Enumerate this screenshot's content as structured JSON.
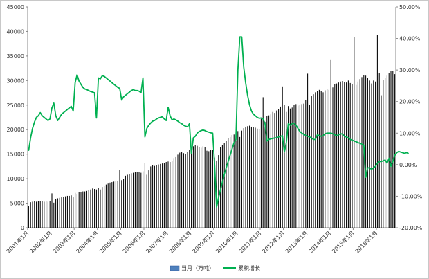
{
  "chart_data": {
    "type": "bar+line",
    "title": "",
    "x_tick_labels": [
      "2001年1月",
      "2002年1月",
      "2003年1月",
      "2004年1月",
      "2005年1月",
      "2006年1月",
      "2007年1月",
      "2008年1月",
      "2009年1月",
      "2010年1月",
      "2011年1月",
      "2012年1月",
      "2013年1月",
      "2014年1月",
      "2015年1月",
      "2016年1月"
    ],
    "y_left": {
      "min": 0,
      "max": 45000,
      "step": 5000,
      "tick_labels": [
        "0",
        "5000",
        "10000",
        "15000",
        "20000",
        "25000",
        "30000",
        "35000",
        "40000",
        "45000"
      ]
    },
    "y_right": {
      "min": -20,
      "max": 50,
      "step": 10,
      "tick_labels": [
        "-20.00%",
        "-10.00%",
        "0.00%",
        "10.00%",
        "20.00%",
        "30.00%",
        "40.00%",
        "50.00%"
      ]
    },
    "grid": false,
    "legend_position": "bottom",
    "colors": {
      "bar": "#000000",
      "bar_legend": "#4f81bd",
      "line": "#00b050"
    },
    "series": [
      {
        "name": "当月（万吨）",
        "axis": "left",
        "kind": "bar",
        "start": "2001-01",
        "values": [
          4400,
          5200,
          5300,
          5400,
          5300,
          5400,
          5400,
          5500,
          5300,
          5400,
          5300,
          5400,
          7000,
          5100,
          5800,
          6000,
          6100,
          6200,
          6300,
          6400,
          6500,
          6500,
          6600,
          6200,
          7100,
          6900,
          7200,
          7300,
          7400,
          7400,
          7500,
          7700,
          7800,
          8000,
          7900,
          7800,
          8100,
          7800,
          8300,
          8600,
          8800,
          9000,
          9200,
          9300,
          9400,
          9500,
          9600,
          11800,
          9700,
          9900,
          10600,
          10800,
          11000,
          11100,
          11200,
          11300,
          11400,
          11300,
          11200,
          11500,
          13200,
          10800,
          11700,
          12500,
          12700,
          12600,
          12800,
          12900,
          13000,
          13100,
          13200,
          13400,
          13500,
          13400,
          13600,
          14200,
          14400,
          14900,
          15300,
          15500,
          15200,
          15000,
          15400,
          15800,
          16300,
          16600,
          16800,
          16700,
          16500,
          16300,
          16600,
          16500,
          15700,
          15600,
          15800,
          15900,
          14300,
          13700,
          14800,
          16500,
          16900,
          17300,
          17700,
          18200,
          18500,
          18900,
          19000,
          19400,
          19700,
          18500,
          19800,
          20300,
          20600,
          20700,
          20800,
          20600,
          20500,
          20400,
          20200,
          20100,
          22200,
          26600,
          21600,
          22800,
          22900,
          23100,
          23600,
          23400,
          23900,
          24200,
          24700,
          28800,
          25000,
          23600,
          24800,
          24300,
          24500,
          25000,
          25200,
          24900,
          25100,
          25200,
          25300,
          26100,
          31400,
          25000,
          26800,
          27200,
          27600,
          27900,
          28100,
          27800,
          27600,
          28000,
          28300,
          28100,
          34300,
          28600,
          29200,
          29400,
          29600,
          29800,
          29900,
          29700,
          29600,
          30000,
          29500,
          29200,
          38900,
          29100,
          29800,
          30300,
          30700,
          31100,
          31000,
          30600,
          30000,
          29400,
          30000,
          29800,
          39300,
          31600,
          27000,
          30100,
          30600,
          31000,
          31500,
          32000,
          31900,
          31300
        ]
      },
      {
        "name": "累积增长",
        "axis": "right",
        "kind": "line",
        "start": "2001-01",
        "values": [
          4.5,
          8.5,
          11.5,
          13.5,
          15,
          15.5,
          16.5,
          15.5,
          15,
          14.5,
          14,
          14.5,
          18,
          19.5,
          15.5,
          14,
          15,
          16,
          16.5,
          17,
          17.5,
          18,
          18.5,
          17,
          26,
          28.5,
          26.5,
          25.5,
          24.5,
          24,
          23.8,
          23.5,
          23.2,
          23,
          22.8,
          14.8,
          27.5,
          27.2,
          28.2,
          28,
          27.5,
          27,
          26.5,
          26,
          25.5,
          25,
          24.5,
          24.2,
          20.5,
          21.5,
          22,
          22.5,
          23,
          23.5,
          23.8,
          23.5,
          23.5,
          23.3,
          22.8,
          27.5,
          8.8,
          11.5,
          12.5,
          13.2,
          13.8,
          14,
          14.5,
          14.8,
          15,
          15.2,
          14.5,
          14,
          18.2,
          15.5,
          14.2,
          14.5,
          14.2,
          13.8,
          13.3,
          13,
          12.5,
          12.2,
          12,
          13,
          3.5,
          8.5,
          9,
          10,
          10.5,
          10.8,
          11,
          10.8,
          10.5,
          10.3,
          10.1,
          10,
          -0.2,
          -13.5,
          -10.5,
          -8,
          -5.5,
          -3,
          -1,
          1,
          3,
          5,
          7,
          8,
          30,
          40.5,
          40.5,
          31,
          26,
          22,
          19,
          17,
          16,
          15.5,
          15,
          14.7,
          14.8,
          14.5,
          13,
          7.5,
          8,
          8.2,
          8.3,
          8.5,
          8.5,
          8.8,
          9,
          9.2,
          4,
          7,
          13,
          12.5,
          13,
          13.2,
          12.5,
          11.5,
          10.5,
          10,
          9.6,
          9.3,
          9,
          8.8,
          8.5,
          8,
          8,
          9.5,
          9.2,
          9,
          9.2,
          9.8,
          10,
          10,
          10,
          9.8,
          9.5,
          9.2,
          9.5,
          9.8,
          9.7,
          9,
          8.8,
          8.5,
          8,
          7.8,
          7.5,
          7.3,
          7,
          6.8,
          6.5,
          6.2,
          -4,
          -1,
          -1,
          -1.5,
          -1,
          -0.5,
          0.5,
          1,
          1,
          1.2,
          1.5,
          0.5,
          2,
          -0.5,
          1,
          3,
          3.8,
          4.2,
          4,
          3.8,
          3.6,
          3.8,
          3.6
        ]
      }
    ]
  },
  "legend": [
    {
      "label": "当月（万吨）",
      "swatch": "bar"
    },
    {
      "label": "累积增长",
      "swatch": "line"
    }
  ]
}
